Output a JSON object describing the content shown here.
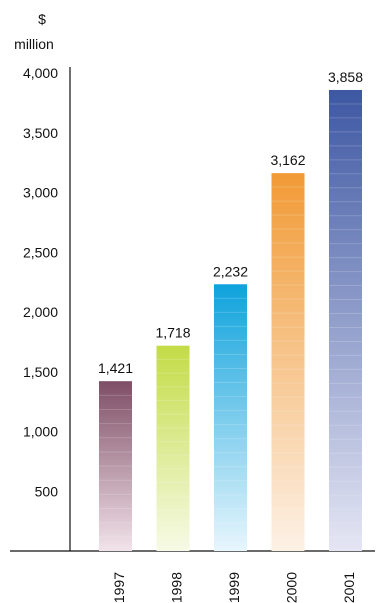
{
  "chart_data": {
    "type": "bar",
    "unit_label_line1": "$",
    "unit_label_line2": "million",
    "categories": [
      "1997",
      "1998",
      "1999",
      "2000",
      "2001"
    ],
    "values": [
      1421,
      1718,
      2232,
      3162,
      3858
    ],
    "value_labels": [
      "1,421",
      "1,718",
      "2,232",
      "3,162",
      "3,858"
    ],
    "y_ticks": [
      {
        "value": 500,
        "label": "500"
      },
      {
        "value": 1000,
        "label": "1,000"
      },
      {
        "value": 1500,
        "label": "1,500"
      },
      {
        "value": 2000,
        "label": "2,000"
      },
      {
        "value": 2500,
        "label": "2,500"
      },
      {
        "value": 3000,
        "label": "3,000"
      },
      {
        "value": 3500,
        "label": "3,500"
      },
      {
        "value": 4000,
        "label": "4,000"
      }
    ],
    "ylim": [
      0,
      4000
    ],
    "grid": false,
    "colors": [
      {
        "top": "#7e4e66",
        "bottom": "#f2e3ea"
      },
      {
        "top": "#c3dc46",
        "bottom": "#f7fae6"
      },
      {
        "top": "#0ea2dc",
        "bottom": "#e8f6fd"
      },
      {
        "top": "#f19a35",
        "bottom": "#fdf1e6"
      },
      {
        "top": "#3d57a2",
        "bottom": "#e5e6f4"
      }
    ]
  }
}
